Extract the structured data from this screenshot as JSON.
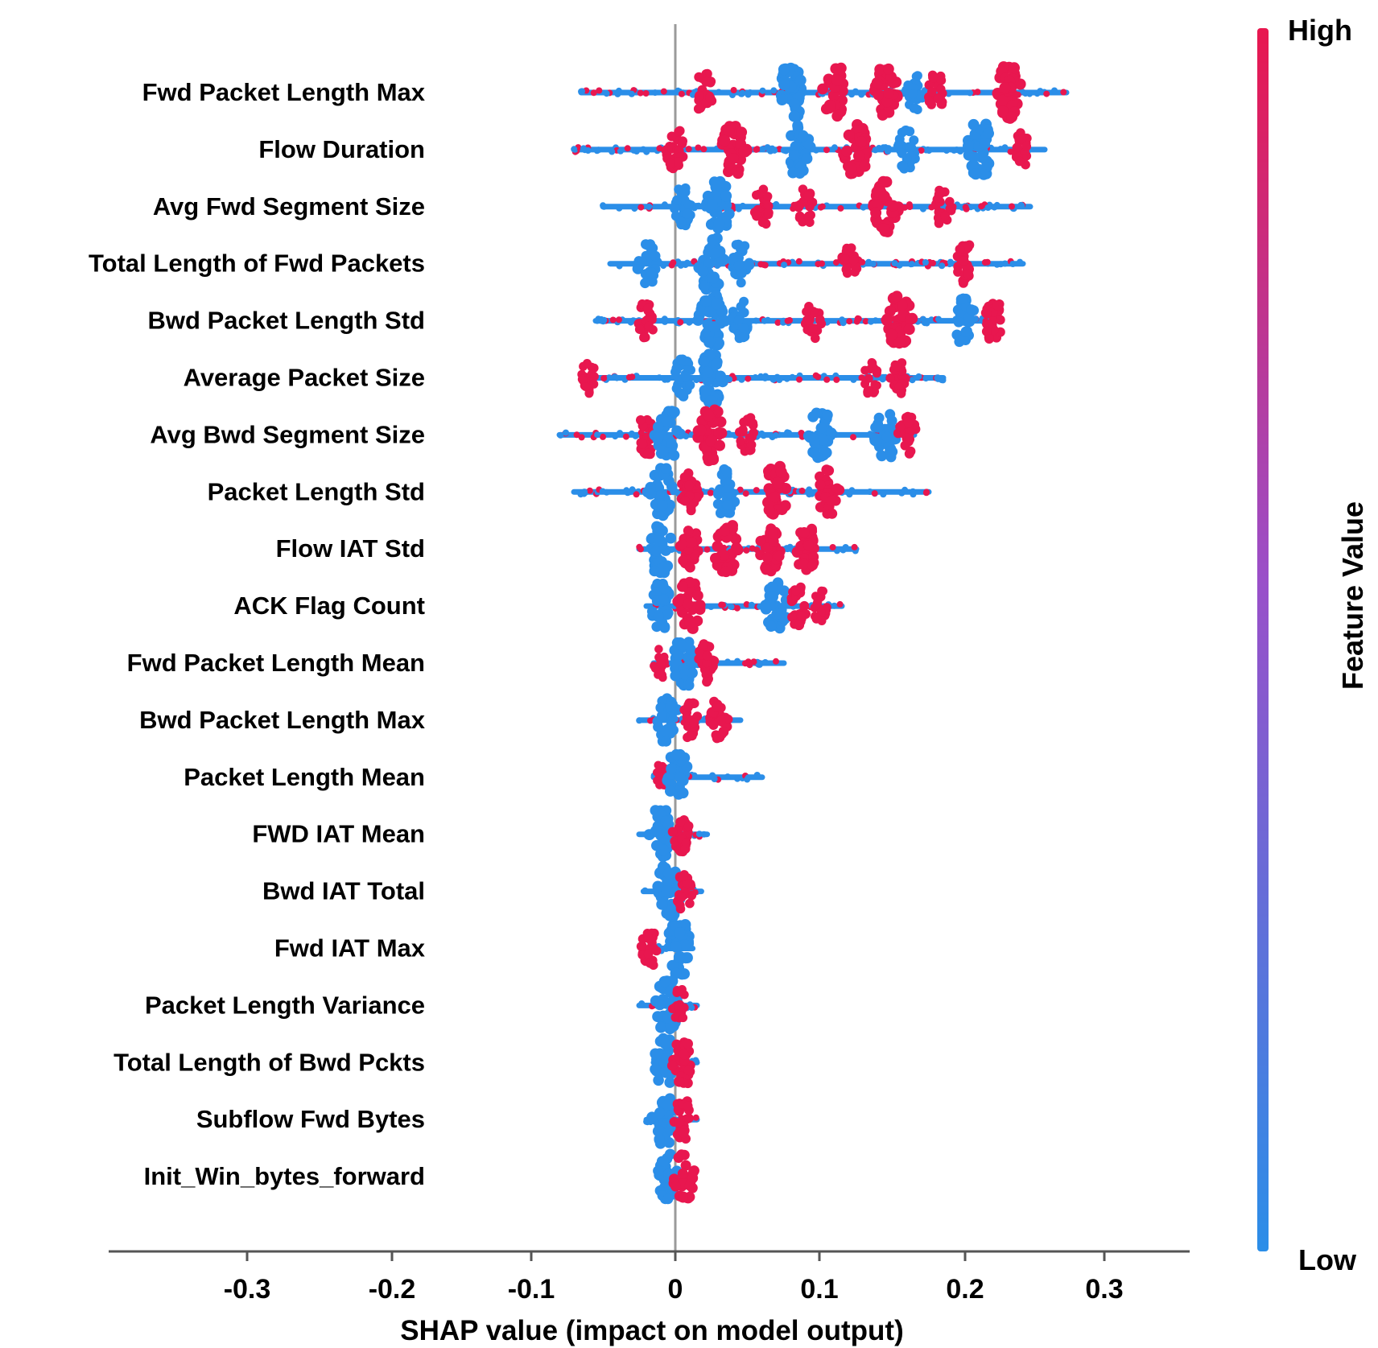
{
  "chart_data": {
    "type": "scatter",
    "subtype": "shap-beeswarm-summary",
    "xlabel": "SHAP value (impact on model output)",
    "xlim": [
      -0.39,
      0.355
    ],
    "x_tick_values": [
      -0.3,
      -0.2,
      -0.1,
      0,
      0.1,
      0.2,
      0.3
    ],
    "x_tick_labels": [
      "-0.3",
      "-0.2",
      "-0.1",
      "0",
      "0.1",
      "0.2",
      "0.3"
    ],
    "colorbar": {
      "title": "Feature Value",
      "high_label": "High",
      "low_label": "Low",
      "high_color": "#e8174f",
      "low_color": "#2b8ee8"
    },
    "features": [
      {
        "name": "Fwd Packet Length Max",
        "min": -0.065,
        "max": 0.27,
        "clusters": [
          [
            0.02,
            "high",
            0.6
          ],
          [
            0.08,
            "low",
            1.0
          ],
          [
            0.11,
            "high",
            0.95
          ],
          [
            0.145,
            "high",
            0.95
          ],
          [
            0.165,
            "low",
            0.5
          ],
          [
            0.18,
            "high",
            0.5
          ],
          [
            0.23,
            "high",
            1.0
          ]
        ]
      },
      {
        "name": "Flow Duration",
        "min": -0.07,
        "max": 0.255,
        "clusters": [
          [
            0,
            "high",
            0.6
          ],
          [
            0.04,
            "high",
            0.95
          ],
          [
            0.085,
            "low",
            0.9
          ],
          [
            0.125,
            "high",
            1.0
          ],
          [
            0.16,
            "low",
            0.6
          ],
          [
            0.21,
            "low",
            1.0
          ],
          [
            0.24,
            "high",
            0.5
          ]
        ]
      },
      {
        "name": "Avg Fwd Segment Size",
        "min": -0.05,
        "max": 0.245,
        "clusters": [
          [
            0.005,
            "low",
            0.6
          ],
          [
            0.03,
            "low",
            0.95
          ],
          [
            0.06,
            "high",
            0.5
          ],
          [
            0.09,
            "high",
            0.5
          ],
          [
            0.145,
            "high",
            1.0
          ],
          [
            0.185,
            "high",
            0.5
          ]
        ]
      },
      {
        "name": "Total Length of Fwd Packets",
        "min": -0.045,
        "max": 0.24,
        "clusters": [
          [
            -0.02,
            "low",
            0.7
          ],
          [
            0.025,
            "low",
            1.0
          ],
          [
            0.045,
            "low",
            0.6
          ],
          [
            0.12,
            "high",
            0.5
          ],
          [
            0.2,
            "high",
            0.6
          ]
        ]
      },
      {
        "name": "Bwd Packet Length Std",
        "min": -0.055,
        "max": 0.225,
        "clusters": [
          [
            -0.02,
            "high",
            0.5
          ],
          [
            0.025,
            "low",
            1.0
          ],
          [
            0.045,
            "low",
            0.6
          ],
          [
            0.095,
            "high",
            0.5
          ],
          [
            0.155,
            "high",
            1.0
          ],
          [
            0.2,
            "low",
            0.8
          ],
          [
            0.22,
            "high",
            0.6
          ]
        ]
      },
      {
        "name": "Average Packet Size",
        "min": -0.065,
        "max": 0.185,
        "clusters": [
          [
            -0.06,
            "high",
            0.4
          ],
          [
            0.005,
            "low",
            0.6
          ],
          [
            0.025,
            "low",
            1.0
          ],
          [
            0.135,
            "high",
            0.4
          ],
          [
            0.155,
            "high",
            0.5
          ]
        ]
      },
      {
        "name": "Avg Bwd Segment Size",
        "min": -0.08,
        "max": 0.165,
        "clusters": [
          [
            -0.02,
            "high",
            0.6
          ],
          [
            -0.005,
            "low",
            0.9
          ],
          [
            0.025,
            "high",
            1.0
          ],
          [
            0.05,
            "high",
            0.5
          ],
          [
            0.1,
            "low",
            0.9
          ],
          [
            0.145,
            "low",
            0.8
          ],
          [
            0.16,
            "high",
            0.6
          ]
        ]
      },
      {
        "name": "Packet Length Std",
        "min": -0.07,
        "max": 0.175,
        "clusters": [
          [
            -0.01,
            "low",
            0.9
          ],
          [
            0.01,
            "high",
            0.6
          ],
          [
            0.035,
            "low",
            0.8
          ],
          [
            0.07,
            "high",
            1.0
          ],
          [
            0.105,
            "high",
            0.8
          ]
        ]
      },
      {
        "name": "Flow IAT Std",
        "min": -0.025,
        "max": 0.125,
        "clusters": [
          [
            -0.01,
            "low",
            0.9
          ],
          [
            0.01,
            "high",
            0.7
          ],
          [
            0.035,
            "high",
            0.95
          ],
          [
            0.065,
            "high",
            0.8
          ],
          [
            0.09,
            "high",
            0.8
          ]
        ]
      },
      {
        "name": "ACK Flag Count",
        "min": -0.02,
        "max": 0.115,
        "clusters": [
          [
            -0.01,
            "low",
            0.8
          ],
          [
            0.01,
            "high",
            0.9
          ],
          [
            0.07,
            "low",
            0.9
          ],
          [
            0.085,
            "high",
            0.6
          ],
          [
            0.1,
            "high",
            0.4
          ]
        ]
      },
      {
        "name": "Fwd Packet Length Mean",
        "min": -0.015,
        "max": 0.075,
        "clusters": [
          [
            -0.01,
            "high",
            0.3
          ],
          [
            0.005,
            "low",
            0.9
          ],
          [
            0.02,
            "high",
            0.6
          ]
        ]
      },
      {
        "name": "Bwd Packet Length Max",
        "min": -0.025,
        "max": 0.045,
        "clusters": [
          [
            -0.005,
            "low",
            0.8
          ],
          [
            0.01,
            "high",
            0.5
          ],
          [
            0.03,
            "high",
            0.6
          ]
        ]
      },
      {
        "name": "Packet Length Mean",
        "min": -0.015,
        "max": 0.06,
        "clusters": [
          [
            -0.01,
            "high",
            0.3
          ],
          [
            0.002,
            "low",
            0.9
          ]
        ]
      },
      {
        "name": "FWD IAT Mean",
        "min": -0.025,
        "max": 0.022,
        "clusters": [
          [
            -0.01,
            "low",
            0.9
          ],
          [
            0.005,
            "high",
            0.6
          ]
        ]
      },
      {
        "name": "Bwd IAT Total",
        "min": -0.022,
        "max": 0.018,
        "clusters": [
          [
            -0.005,
            "low",
            1.0
          ],
          [
            0.006,
            "high",
            0.5
          ]
        ]
      },
      {
        "name": "Fwd IAT Max",
        "min": -0.02,
        "max": 0.012,
        "clusters": [
          [
            -0.018,
            "high",
            0.5
          ],
          [
            0.002,
            "low",
            1.0
          ]
        ]
      },
      {
        "name": "Packet Length Variance",
        "min": -0.025,
        "max": 0.015,
        "clusters": [
          [
            -0.005,
            "low",
            1.0
          ],
          [
            0.003,
            "high",
            0.4
          ]
        ]
      },
      {
        "name": "Total Length of Bwd Pckts",
        "min": -0.015,
        "max": 0.015,
        "clusters": [
          [
            -0.007,
            "low",
            0.9
          ],
          [
            0.005,
            "high",
            0.7
          ]
        ]
      },
      {
        "name": "Subflow Fwd Bytes",
        "min": -0.02,
        "max": 0.015,
        "clusters": [
          [
            -0.008,
            "low",
            0.9
          ],
          [
            0.005,
            "high",
            0.6
          ]
        ]
      },
      {
        "name": "Init_Win_bytes_forward",
        "min": -0.012,
        "max": 0.012,
        "clusters": [
          [
            -0.006,
            "low",
            0.8
          ],
          [
            0.006,
            "high",
            0.8
          ]
        ]
      }
    ]
  }
}
